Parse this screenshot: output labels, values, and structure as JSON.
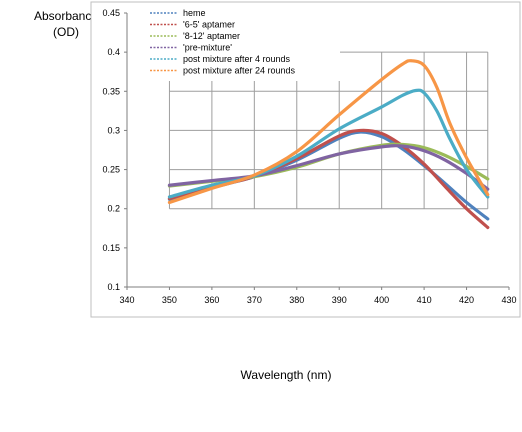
{
  "chart_data": {
    "type": "line",
    "xlabel": "Wavelength (nm)",
    "ylabel": "Absorbance (OD)",
    "xlim": [
      340,
      430
    ],
    "ylim": [
      0.1,
      0.45
    ],
    "xticks": [
      340,
      350,
      360,
      370,
      380,
      390,
      400,
      410,
      420,
      430
    ],
    "yticks": [
      0.1,
      0.15,
      0.2,
      0.25,
      0.3,
      0.35,
      0.4,
      0.45
    ],
    "grid": "x-and-y, within data range",
    "legend_position": "top-left",
    "series": [
      {
        "name": "heme",
        "color": "#4f81bd",
        "x": [
          350,
          360,
          370,
          380,
          390,
          395,
          400,
          405,
          410,
          415,
          420,
          425
        ],
        "y": [
          0.212,
          0.227,
          0.241,
          0.262,
          0.29,
          0.298,
          0.292,
          0.276,
          0.255,
          0.232,
          0.208,
          0.187
        ]
      },
      {
        "name": "'6-5' aptamer",
        "color": "#c0504d",
        "x": [
          350,
          360,
          370,
          380,
          390,
          395,
          400,
          405,
          410,
          415,
          420,
          425
        ],
        "y": [
          0.213,
          0.228,
          0.241,
          0.264,
          0.293,
          0.3,
          0.296,
          0.28,
          0.257,
          0.228,
          0.2,
          0.176
        ]
      },
      {
        "name": "'8-12' aptamer",
        "color": "#9bbb59",
        "x": [
          350,
          360,
          370,
          380,
          390,
          400,
          405,
          410,
          415,
          420,
          425
        ],
        "y": [
          0.229,
          0.235,
          0.241,
          0.253,
          0.27,
          0.281,
          0.282,
          0.278,
          0.268,
          0.254,
          0.238
        ]
      },
      {
        "name": "'pre-mixture'",
        "color": "#8064a2",
        "x": [
          350,
          360,
          370,
          380,
          390,
          400,
          405,
          410,
          415,
          420,
          425
        ],
        "y": [
          0.23,
          0.236,
          0.242,
          0.255,
          0.27,
          0.279,
          0.28,
          0.274,
          0.262,
          0.245,
          0.225
        ]
      },
      {
        "name": "post mixture after 4 rounds",
        "color": "#4bacc6",
        "x": [
          350,
          360,
          370,
          380,
          390,
          400,
          405,
          408,
          410,
          413,
          416,
          420,
          425
        ],
        "y": [
          0.215,
          0.23,
          0.242,
          0.267,
          0.302,
          0.33,
          0.345,
          0.351,
          0.348,
          0.325,
          0.29,
          0.25,
          0.215
        ]
      },
      {
        "name": "post mixture after 24 rounds",
        "color": "#f79646",
        "x": [
          350,
          360,
          370,
          380,
          390,
          400,
          405,
          407,
          410,
          413,
          416,
          420,
          425
        ],
        "y": [
          0.208,
          0.226,
          0.243,
          0.273,
          0.32,
          0.365,
          0.385,
          0.389,
          0.383,
          0.355,
          0.31,
          0.265,
          0.218
        ]
      }
    ]
  }
}
